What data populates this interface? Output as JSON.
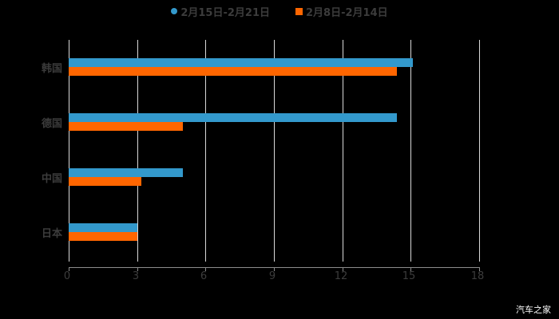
{
  "legend": [
    {
      "label": "2月15日-2月21日",
      "color": "#3399cc",
      "marker": "circle"
    },
    {
      "label": "2月8日-2月14日",
      "color": "#ff6600",
      "marker": "square"
    }
  ],
  "watermark": "汽车之家",
  "chart_data": {
    "type": "bar",
    "orientation": "horizontal",
    "title": "",
    "xlabel": "",
    "ylabel": "",
    "categories": [
      "韩国",
      "德国",
      "中国",
      "日本"
    ],
    "series": [
      {
        "name": "2月15日-2月21日",
        "color": "#3399cc",
        "values": [
          15.1,
          14.4,
          5.0,
          3.0
        ]
      },
      {
        "name": "2月8日-2月14日",
        "color": "#ff6600",
        "values": [
          14.4,
          5.0,
          3.2,
          3.0
        ]
      }
    ],
    "xlim": [
      0,
      18
    ],
    "xticks": [
      "0",
      "3",
      "6",
      "9",
      "12",
      "15",
      "18"
    ],
    "grid": true,
    "legend_position": "top"
  }
}
